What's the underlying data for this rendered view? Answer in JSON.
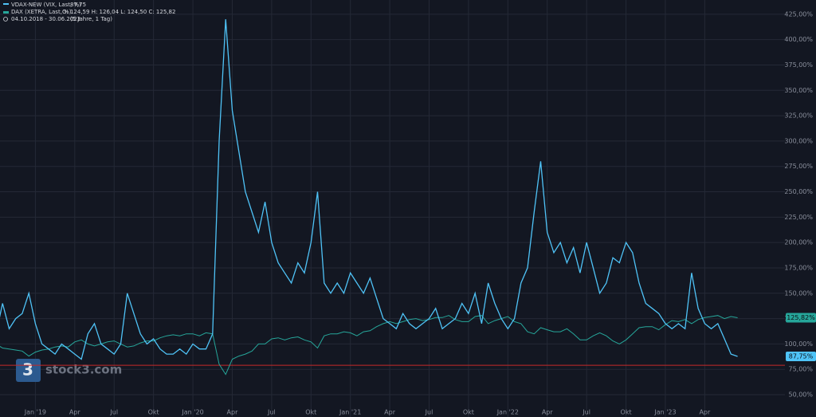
{
  "chart_data": {
    "type": "line",
    "header": {
      "vix_line": "VDAX-NEW (VIX, Last, %)",
      "vix_last": "87,75",
      "dax_line": "DAX (XETRA, Last, %)",
      "dax_ohlc": "O: 124,59  H: 126,04  L: 124,50  C: 125,82",
      "range": "04.10.2018 - 30.06.2023",
      "range_note": "(5 Jahre, 1 Tag)"
    },
    "watermark": "stock3.com",
    "categories": [
      null,
      null,
      null,
      null,
      null,
      null,
      "Jan '19",
      null,
      null,
      null,
      null,
      null,
      "Apr",
      null,
      null,
      null,
      null,
      null,
      "Jul",
      null,
      null,
      null,
      null,
      null,
      "Okt",
      null,
      null,
      null,
      null,
      null,
      "Jan '20",
      null,
      null,
      null,
      null,
      null,
      "Apr",
      null,
      null,
      null,
      null,
      null,
      "Jul",
      null,
      null,
      null,
      null,
      null,
      "Okt",
      null,
      null,
      null,
      null,
      null,
      "Jan '21",
      null,
      null,
      null,
      null,
      null,
      "Apr",
      null,
      null,
      null,
      null,
      null,
      "Jul",
      null,
      null,
      null,
      null,
      null,
      "Okt",
      null,
      null,
      null,
      null,
      null,
      "Jan '22",
      null,
      null,
      null,
      null,
      null,
      "Apr",
      null,
      null,
      null,
      null,
      null,
      "Jul",
      null,
      null,
      null,
      null,
      null,
      "Okt",
      null,
      null,
      null,
      null,
      null,
      "Jan '23",
      null,
      null,
      null,
      null,
      null,
      "Apr",
      null,
      null,
      null,
      null,
      null
    ],
    "series": [
      {
        "name": "VDAX-NEW",
        "color": "#4fc3f7",
        "values": [
          110,
          140,
          115,
          125,
          130,
          150,
          120,
          100,
          95,
          90,
          100,
          95,
          90,
          85,
          110,
          120,
          100,
          95,
          90,
          100,
          150,
          130,
          110,
          100,
          105,
          95,
          90,
          90,
          95,
          90,
          100,
          95,
          95,
          110,
          300,
          420,
          330,
          290,
          250,
          230,
          210,
          240,
          200,
          180,
          170,
          160,
          180,
          170,
          200,
          250,
          160,
          150,
          160,
          150,
          170,
          160,
          150,
          165,
          145,
          125,
          120,
          115,
          130,
          120,
          115,
          120,
          125,
          135,
          115,
          120,
          125,
          140,
          130,
          150,
          120,
          160,
          140,
          125,
          115,
          125,
          160,
          175,
          230,
          280,
          210,
          190,
          200,
          180,
          195,
          170,
          200,
          175,
          150,
          160,
          185,
          180,
          200,
          190,
          160,
          140,
          135,
          130,
          120,
          115,
          120,
          115,
          170,
          135,
          120,
          115,
          120,
          105,
          90,
          87.75
        ],
        "last_label": {
          "value": 87.75,
          "label": "87,75%"
        }
      },
      {
        "name": "DAX",
        "color": "#26a69a",
        "values": [
          100,
          96,
          95,
          94,
          93,
          88,
          92,
          94,
          95,
          97,
          98,
          97,
          102,
          104,
          100,
          98,
          100,
          102,
          103,
          100,
          97,
          98,
          101,
          103,
          103,
          106,
          108,
          109,
          108,
          110,
          110,
          108,
          111,
          110,
          80,
          70,
          85,
          88,
          90,
          93,
          100,
          100,
          105,
          106,
          104,
          106,
          107,
          104,
          102,
          96,
          108,
          110,
          110,
          112,
          111,
          108,
          112,
          113,
          117,
          120,
          122,
          120,
          122,
          124,
          125,
          123,
          124,
          126,
          126,
          128,
          124,
          122,
          122,
          127,
          128,
          120,
          123,
          125,
          127,
          122,
          120,
          112,
          110,
          116,
          114,
          112,
          112,
          115,
          110,
          104,
          104,
          108,
          111,
          108,
          103,
          100,
          104,
          110,
          116,
          117,
          117,
          114,
          119,
          123,
          122,
          124,
          120,
          124,
          126,
          127,
          128,
          125,
          127,
          125.82
        ],
        "last_label": {
          "value": 125.82,
          "label": "125,82%"
        }
      }
    ],
    "hline": {
      "value": 79,
      "color": "#c62828"
    },
    "ylim": [
      28,
      439
    ],
    "yticks": [
      {
        "value": 50,
        "label": "50,00%"
      },
      {
        "value": 75,
        "label": "75,00%"
      },
      {
        "value": 100,
        "label": "100,00%"
      },
      {
        "value": 125,
        "label": "125,00%"
      },
      {
        "value": 150,
        "label": "150,00%"
      },
      {
        "value": 175,
        "label": "175,00%"
      },
      {
        "value": 200,
        "label": "200,00%"
      },
      {
        "value": 225,
        "label": "225,00%"
      },
      {
        "value": 250,
        "label": "250,00%"
      },
      {
        "value": 275,
        "label": "275,00%"
      },
      {
        "value": 300,
        "label": "300,00%"
      },
      {
        "value": 325,
        "label": "325,00%"
      },
      {
        "value": 350,
        "label": "350,00%"
      },
      {
        "value": 375,
        "label": "375,00%"
      },
      {
        "value": 400,
        "label": "400,00%"
      },
      {
        "value": 425,
        "label": "425,00%"
      }
    ],
    "grid": true
  }
}
